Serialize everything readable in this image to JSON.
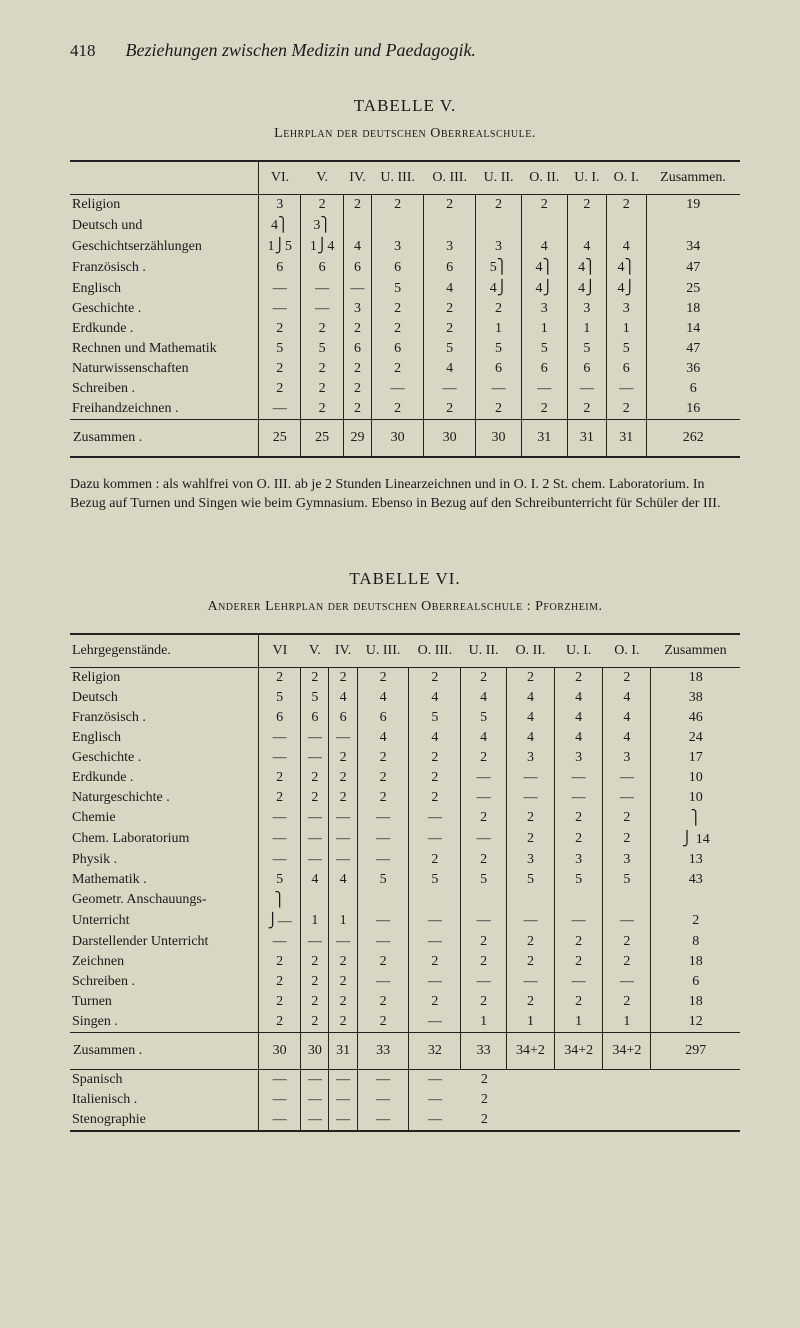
{
  "page_number": "418",
  "header_title": "Beziehungen zwischen Medizin und Paedagogik.",
  "table5": {
    "title": "TABELLE V.",
    "subtitle": "Lehrplan der deutschen Oberrealschule.",
    "cols": [
      "VI.",
      "V.",
      "IV.",
      "U. III.",
      "O. III.",
      "U. II.",
      "O. II.",
      "U. I.",
      "O. I.",
      "Zusammen."
    ],
    "rows": [
      {
        "label": "Religion",
        "c": [
          "3",
          "2",
          "2",
          "2",
          "2",
          "2",
          "2",
          "2",
          "2",
          "19"
        ]
      },
      {
        "label": "Deutsch und",
        "c": [
          "4⎫",
          "3⎫",
          "",
          "",
          "",
          "",
          "",
          "",
          "",
          ""
        ]
      },
      {
        "label": "    Geschichtserzählungen",
        "c": [
          "1⎭5",
          "1⎭4",
          "4",
          "3",
          "3",
          "3",
          "4",
          "4",
          "4",
          "34"
        ]
      },
      {
        "label": "Französisch .",
        "c": [
          "6",
          "6",
          "6",
          "6",
          "6",
          "5⎫",
          "4⎫",
          "4⎫",
          "4⎫",
          "47"
        ]
      },
      {
        "label": "Englisch",
        "c": [
          "—",
          "—",
          "—",
          "5",
          "4",
          "4⎭",
          "4⎭",
          "4⎭",
          "4⎭",
          "25"
        ]
      },
      {
        "label": "Geschichte .",
        "c": [
          "—",
          "—",
          "3",
          "2",
          "2",
          "2",
          "3",
          "3",
          "3",
          "18"
        ]
      },
      {
        "label": "Erdkunde .",
        "c": [
          "2",
          "2",
          "2",
          "2",
          "2",
          "1",
          "1",
          "1",
          "1",
          "14"
        ]
      },
      {
        "label": "Rechnen und Mathematik",
        "c": [
          "5",
          "5",
          "6",
          "6",
          "5",
          "5",
          "5",
          "5",
          "5",
          "47"
        ]
      },
      {
        "label": "Naturwissenschaften",
        "c": [
          "2",
          "2",
          "2",
          "2",
          "4",
          "6",
          "6",
          "6",
          "6",
          "36"
        ]
      },
      {
        "label": "Schreiben .",
        "c": [
          "2",
          "2",
          "2",
          "—",
          "—",
          "—",
          "—",
          "—",
          "—",
          "6"
        ]
      },
      {
        "label": "Freihandzeichnen .",
        "c": [
          "—",
          "2",
          "2",
          "2",
          "2",
          "2",
          "2",
          "2",
          "2",
          "16"
        ]
      }
    ],
    "sum": {
      "label": "Zusammen .",
      "c": [
        "25",
        "25",
        "29",
        "30",
        "30",
        "30",
        "31",
        "31",
        "31",
        "262"
      ]
    }
  },
  "footnote5": "Dazu kommen : als wahlfrei von O. III. ab je 2 Stunden Linearzeichnen und in O. I. 2 St. chem. Laboratorium. In Bezug auf Turnen und Singen wie beim Gymnasium. Ebenso in Bezug auf den Schreibunterricht für Schüler der III.",
  "table6": {
    "title": "TABELLE VI.",
    "subtitle": "Anderer Lehrplan der deutschen Oberrealschule : Pforzheim.",
    "label_head": "Lehrgegenstände.",
    "cols": [
      "VI",
      "V.",
      "IV.",
      "U. III.",
      "O. III.",
      "U. II.",
      "O. II.",
      "U. I.",
      "O. I.",
      "Zusammen"
    ],
    "rows": [
      {
        "label": "Religion",
        "c": [
          "2",
          "2",
          "2",
          "2",
          "2",
          "2",
          "2",
          "2",
          "2",
          "18"
        ]
      },
      {
        "label": "Deutsch",
        "c": [
          "5",
          "5",
          "4",
          "4",
          "4",
          "4",
          "4",
          "4",
          "4",
          "38"
        ]
      },
      {
        "label": "Französisch .",
        "c": [
          "6",
          "6",
          "6",
          "6",
          "5",
          "5",
          "4",
          "4",
          "4",
          "46"
        ]
      },
      {
        "label": "Englisch",
        "c": [
          "—",
          "—",
          "—",
          "4",
          "4",
          "4",
          "4",
          "4",
          "4",
          "24"
        ]
      },
      {
        "label": "Geschichte .",
        "c": [
          "—",
          "—",
          "2",
          "2",
          "2",
          "2",
          "3",
          "3",
          "3",
          "17"
        ]
      },
      {
        "label": "Erdkunde .",
        "c": [
          "2",
          "2",
          "2",
          "2",
          "2",
          "—",
          "—",
          "—",
          "—",
          "10"
        ]
      },
      {
        "label": "Naturgeschichte .",
        "c": [
          "2",
          "2",
          "2",
          "2",
          "2",
          "—",
          "—",
          "—",
          "—",
          "10"
        ]
      },
      {
        "label": "Chemie",
        "c": [
          "—",
          "—",
          "—",
          "—",
          "—",
          "2",
          "2",
          "2",
          "2",
          "⎫"
        ]
      },
      {
        "label": "Chem. Laboratorium",
        "c": [
          "—",
          "—",
          "—",
          "—",
          "—",
          "—",
          "2",
          "2",
          "2",
          "⎭ 14"
        ]
      },
      {
        "label": "Physik .",
        "c": [
          "—",
          "—",
          "—",
          "—",
          "2",
          "2",
          "3",
          "3",
          "3",
          "13"
        ]
      },
      {
        "label": "Mathematik .",
        "c": [
          "5",
          "4",
          "4",
          "5",
          "5",
          "5",
          "5",
          "5",
          "5",
          "43"
        ]
      },
      {
        "label": "Geometr. Anschauungs-",
        "c": [
          "⎫",
          "",
          "",
          "",
          "",
          "",
          "",
          "",
          "",
          ""
        ]
      },
      {
        "label": "    Unterricht",
        "c": [
          "⎭—",
          "1",
          "1",
          "—",
          "—",
          "—",
          "—",
          "—",
          "—",
          "2"
        ]
      },
      {
        "label": "Darstellender Unterricht",
        "c": [
          "—",
          "—",
          "—",
          "—",
          "—",
          "2",
          "2",
          "2",
          "2",
          "8"
        ]
      },
      {
        "label": "Zeichnen",
        "c": [
          "2",
          "2",
          "2",
          "2",
          "2",
          "2",
          "2",
          "2",
          "2",
          "18"
        ]
      },
      {
        "label": "Schreiben .",
        "c": [
          "2",
          "2",
          "2",
          "—",
          "—",
          "—",
          "—",
          "—",
          "—",
          "6"
        ]
      },
      {
        "label": "Turnen",
        "c": [
          "2",
          "2",
          "2",
          "2",
          "2",
          "2",
          "2",
          "2",
          "2",
          "18"
        ]
      },
      {
        "label": "Singen .",
        "c": [
          "2",
          "2",
          "2",
          "2",
          "—",
          "1",
          "1",
          "1",
          "1",
          "12"
        ]
      }
    ],
    "sum": {
      "label": "Zusammen .",
      "c": [
        "30",
        "30",
        "31",
        "33",
        "32",
        "33",
        "34+2",
        "34+2",
        "34+2",
        "297"
      ]
    },
    "extras": [
      {
        "label": "Spanisch",
        "note": "2",
        "c": [
          "—",
          "—",
          "—",
          "—",
          "—"
        ]
      },
      {
        "label": "Italienisch .",
        "note": "2",
        "c": [
          "—",
          "—",
          "—",
          "—",
          "—"
        ]
      },
      {
        "label": "Stenographie",
        "note": "2",
        "c": [
          "—",
          "—",
          "—",
          "—",
          "—"
        ]
      }
    ]
  }
}
